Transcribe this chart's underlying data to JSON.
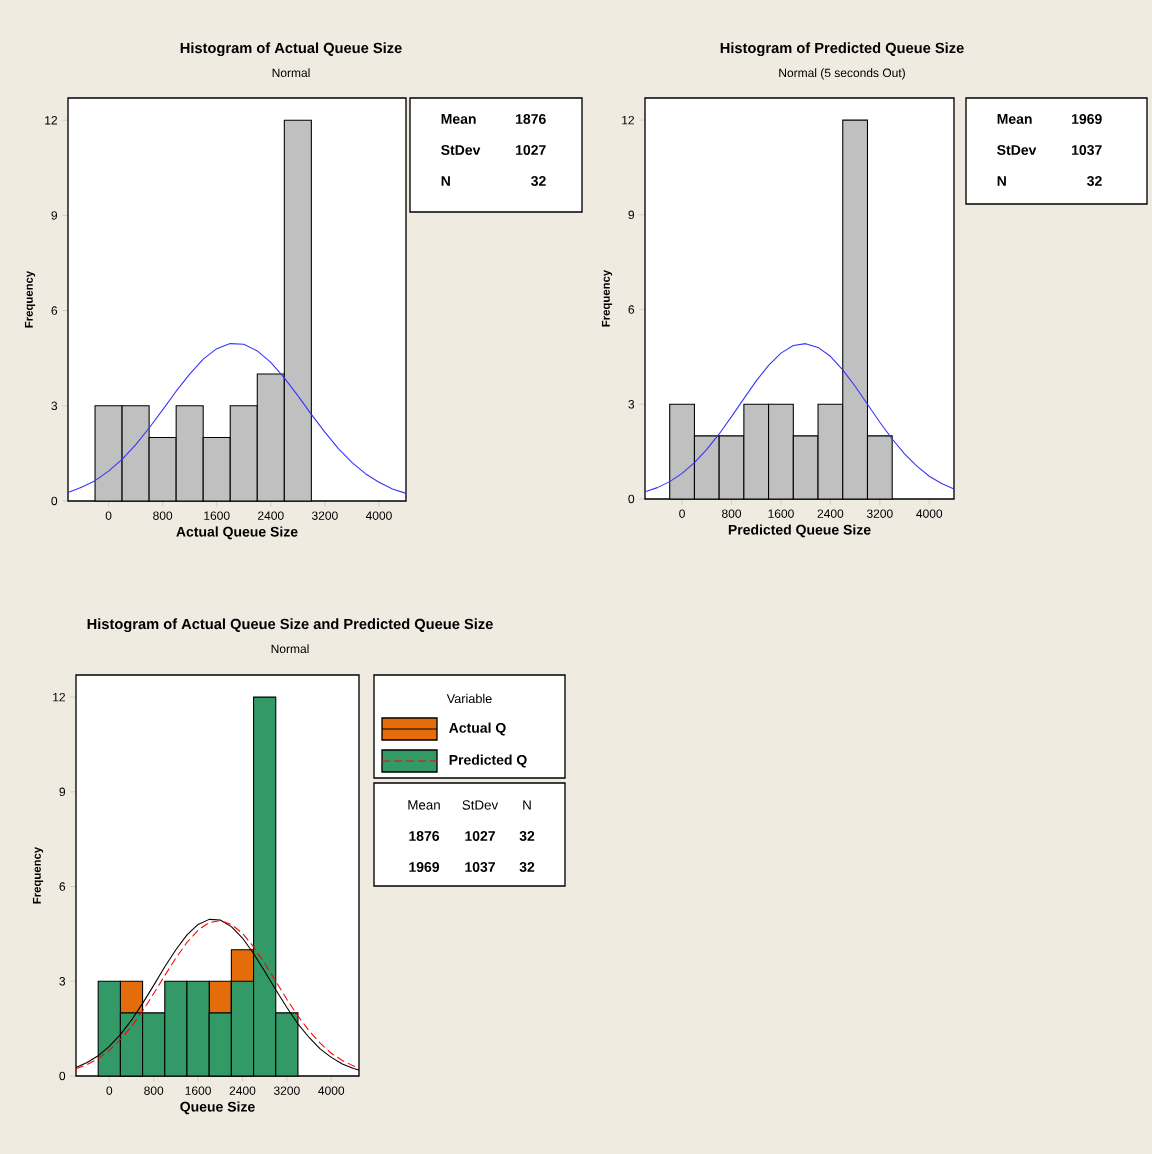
{
  "chart_data": [
    {
      "type": "histogram",
      "title": "Histogram of Actual Queue Size",
      "subtitle": "Normal",
      "xlabel": "Actual Queue Size",
      "ylabel": "Frequency",
      "bins": [
        -200,
        200,
        600,
        1000,
        1400,
        1800,
        2200,
        2600,
        3000
      ],
      "series": [
        {
          "color": "#c0c0c0",
          "values": [
            3,
            3,
            2,
            3,
            2,
            3,
            4,
            12
          ]
        },
        {
          "type": "line",
          "color": "#3333ff",
          "line_style": "solid",
          "x": [
            -600,
            -400,
            -200,
            0,
            200,
            400,
            600,
            800,
            1000,
            1200,
            1400,
            1600,
            1800,
            2000,
            2200,
            2400,
            2600,
            2800,
            3000,
            3200,
            3400,
            3600,
            3800,
            4000,
            4200,
            4400
          ],
          "values": [
            0.27,
            0.43,
            0.64,
            0.94,
            1.31,
            1.77,
            2.3,
            2.87,
            3.46,
            4.0,
            4.47,
            4.8,
            4.96,
            4.94,
            4.73,
            4.37,
            3.88,
            3.32,
            2.73,
            2.17,
            1.65,
            1.22,
            0.86,
            0.59,
            0.38,
            0.24
          ]
        }
      ],
      "xlim": [
        -600,
        4400
      ],
      "ylim": [
        0,
        12.7
      ],
      "xticks": [
        0,
        800,
        1600,
        2400,
        3200,
        4000
      ],
      "yticks": [
        0,
        3,
        6,
        9,
        12
      ],
      "annotations": [
        "Mean",
        "1876",
        "StDev",
        "1027",
        "N",
        "32"
      ]
    },
    {
      "type": "histogram",
      "title": "Histogram of Predicted Queue Size",
      "subtitle": "Normal (5 seconds Out)",
      "xlabel": "Predicted Queue Size",
      "ylabel": "Frequency",
      "bins": [
        -200,
        200,
        600,
        1000,
        1400,
        1800,
        2200,
        2600,
        3000,
        3400
      ],
      "series": [
        {
          "color": "#c0c0c0",
          "values": [
            3,
            2,
            2,
            3,
            3,
            2,
            3,
            12,
            2
          ]
        },
        {
          "type": "line",
          "color": "#3333ff",
          "line_style": "solid",
          "x": [
            -600,
            -400,
            -200,
            0,
            200,
            400,
            600,
            800,
            1000,
            1200,
            1400,
            1600,
            1800,
            2000,
            2200,
            2400,
            2600,
            2800,
            3000,
            3200,
            3400,
            3600,
            3800,
            4000,
            4200,
            4400
          ],
          "values": [
            0.23,
            0.36,
            0.55,
            0.81,
            1.15,
            1.57,
            2.06,
            2.61,
            3.18,
            3.74,
            4.23,
            4.62,
            4.86,
            4.92,
            4.8,
            4.52,
            4.09,
            3.57,
            3.0,
            2.43,
            1.9,
            1.43,
            1.04,
            0.72,
            0.49,
            0.32
          ]
        }
      ],
      "xlim": [
        -600,
        4400
      ],
      "ylim": [
        0,
        12.7
      ],
      "xticks": [
        0,
        800,
        1600,
        2400,
        3200,
        4000
      ],
      "yticks": [
        0,
        3,
        6,
        9,
        12
      ],
      "annotations": [
        "Mean",
        "1969",
        "StDev",
        "1037",
        "N",
        "32"
      ]
    },
    {
      "type": "histogram",
      "title": "Histogram of Actual Queue Size and Predicted Queue Size",
      "subtitle": "Normal",
      "xlabel": "Queue Size",
      "ylabel": "Frequency",
      "legend_title": "Variable",
      "legend": "right",
      "bins": [
        -200,
        200,
        600,
        1000,
        1400,
        1800,
        2200,
        2600,
        3000,
        3400
      ],
      "series": [
        {
          "name": "Actual Q",
          "color": "#e46c0a",
          "values": [
            null,
            3,
            null,
            null,
            null,
            3,
            4,
            null,
            null
          ]
        },
        {
          "name": "Predicted Q",
          "color": "#339966",
          "values": [
            3,
            2,
            2,
            3,
            3,
            2,
            3,
            12,
            2
          ]
        },
        {
          "type": "line",
          "color": "#000000",
          "line_style": "solid",
          "x": [
            -600,
            -400,
            -200,
            0,
            200,
            400,
            600,
            800,
            1000,
            1200,
            1400,
            1600,
            1800,
            2000,
            2200,
            2400,
            2600,
            2800,
            3000,
            3200,
            3400,
            3600,
            3800,
            4000,
            4200,
            4400,
            4500
          ],
          "values": [
            0.27,
            0.43,
            0.64,
            0.94,
            1.31,
            1.77,
            2.3,
            2.87,
            3.46,
            4.0,
            4.47,
            4.8,
            4.96,
            4.94,
            4.73,
            4.37,
            3.88,
            3.32,
            2.73,
            2.17,
            1.65,
            1.22,
            0.86,
            0.59,
            0.38,
            0.24,
            0.19
          ]
        },
        {
          "type": "line",
          "color": "#ff0000",
          "line_style": "dashed",
          "x": [
            -600,
            -400,
            -200,
            0,
            200,
            400,
            600,
            800,
            1000,
            1200,
            1400,
            1600,
            1800,
            2000,
            2200,
            2400,
            2600,
            2800,
            3000,
            3200,
            3400,
            3600,
            3800,
            4000,
            4200,
            4400,
            4500
          ],
          "values": [
            0.23,
            0.36,
            0.55,
            0.81,
            1.15,
            1.57,
            2.06,
            2.61,
            3.18,
            3.74,
            4.23,
            4.62,
            4.86,
            4.92,
            4.8,
            4.52,
            4.09,
            3.57,
            3.0,
            2.43,
            1.9,
            1.43,
            1.04,
            0.72,
            0.49,
            0.32,
            0.25
          ]
        }
      ],
      "xlim": [
        -600,
        4500
      ],
      "ylim": [
        0,
        12.7
      ],
      "xticks": [
        0,
        800,
        1600,
        2400,
        3200,
        4000
      ],
      "yticks": [
        0,
        3,
        6,
        9,
        12
      ],
      "annotations": [
        "Mean",
        "StDev",
        "N",
        "1876",
        "1027",
        "32",
        "1969",
        "1037",
        "32"
      ]
    }
  ]
}
